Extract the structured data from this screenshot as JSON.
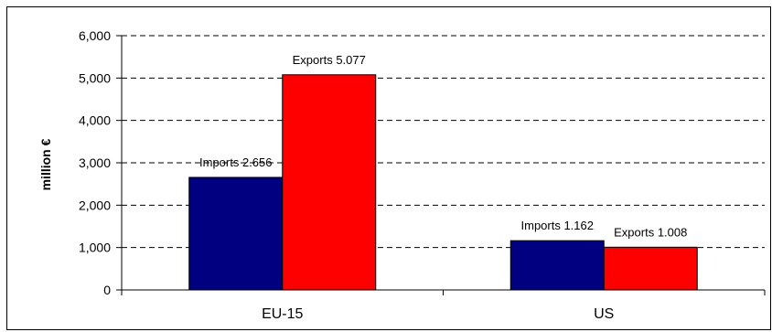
{
  "chart_data": {
    "type": "bar",
    "categories": [
      "EU-15",
      "US"
    ],
    "series": [
      {
        "name": "Imports",
        "values": [
          2656,
          1162
        ],
        "color": "#000080"
      },
      {
        "name": "Exports",
        "values": [
          5077,
          1008
        ],
        "color": "#ff0000"
      }
    ],
    "data_labels": [
      [
        "Imports 2.656",
        "Exports 5.077"
      ],
      [
        "Imports 1.162",
        "Exports 1.008"
      ]
    ],
    "ylabel": "million €",
    "ylim": [
      0,
      6000
    ],
    "yticks": [
      0,
      1000,
      2000,
      3000,
      4000,
      5000,
      6000
    ],
    "ytick_labels": [
      "0",
      "1,000",
      "2,000",
      "3,000",
      "4,000",
      "5,000",
      "6,000"
    ],
    "grid": true,
    "legend": "none"
  }
}
